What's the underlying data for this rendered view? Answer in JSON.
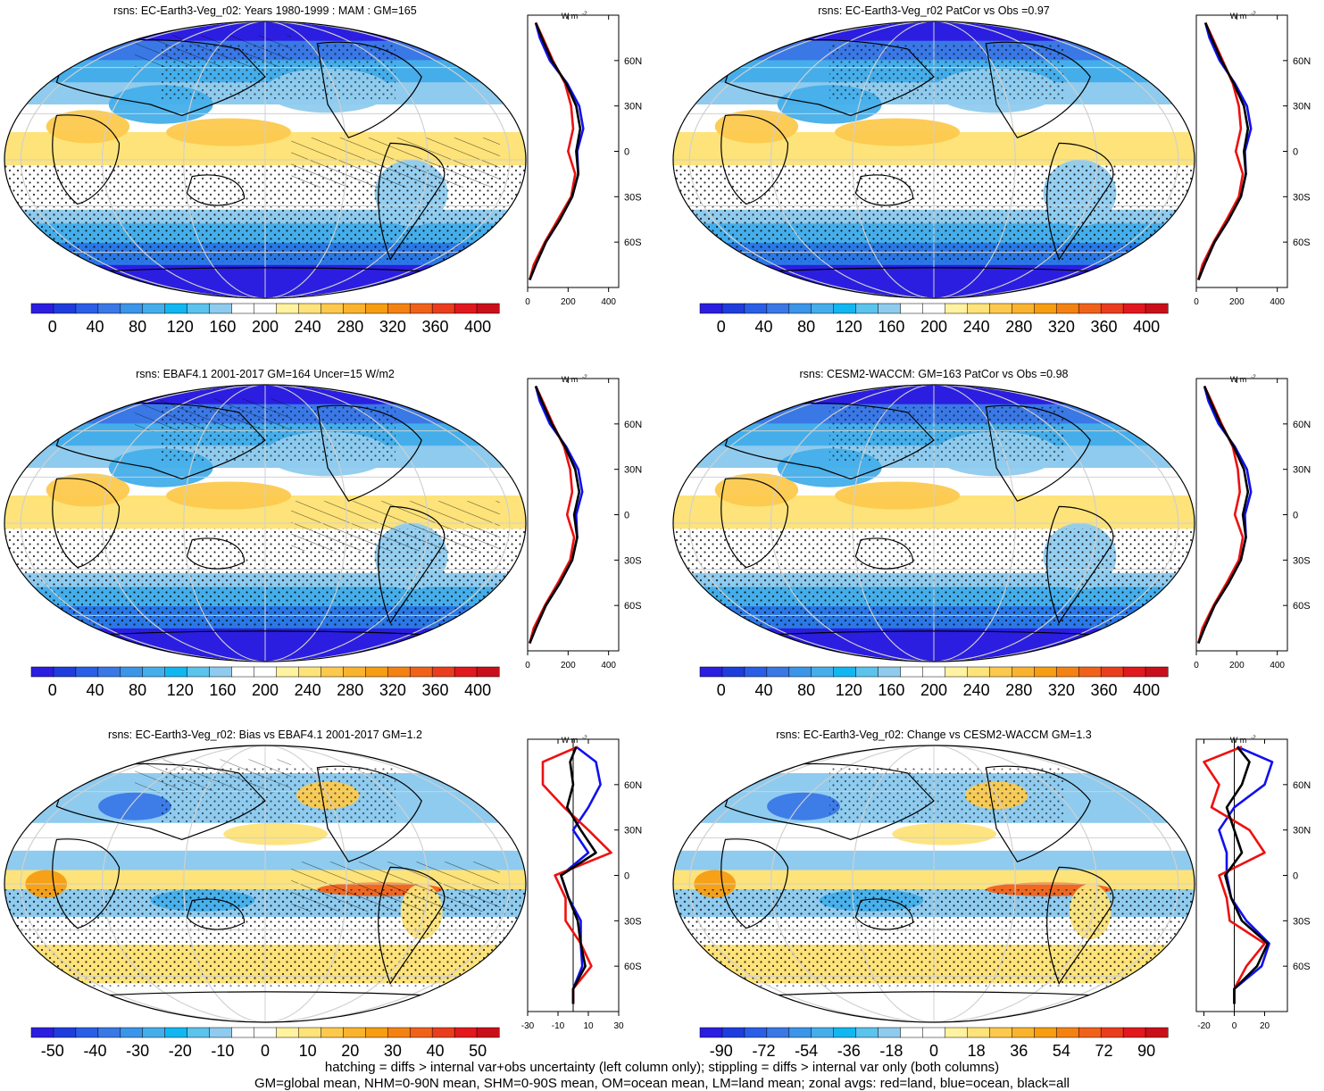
{
  "footer": {
    "line1": "hatching = diffs > internal var+obs uncertainty (left column only); stippling = diffs > internal var only (both columns)",
    "line2": "GM=global mean, NHM=0-90N mean, SHM=0-90S mean, OM=ocean mean, LM=land mean; zonal avgs: red=land, blue=ocean, black=all"
  },
  "profile_unit": "W m",
  "profile_unit_sup": "-2",
  "lat_ticks": [
    "60N",
    "30N",
    "0",
    "30S",
    "60S"
  ],
  "chart_data": [
    {
      "type": "heatmap",
      "title": "rsns: EC-Earth3-Veg_r02: Years 1980-1999 : MAM : GM=165",
      "colorbar": {
        "min": -20,
        "max": 420,
        "labels": [
          "0",
          "40",
          "80",
          "120",
          "160",
          "200",
          "240",
          "280",
          "320",
          "360",
          "400"
        ],
        "palette": "clim"
      },
      "profile": {
        "xlim": [
          0,
          450
        ],
        "ticks": [
          0,
          200,
          400
        ],
        "ref_line": null,
        "lat": [
          85,
          75,
          60,
          45,
          30,
          15,
          0,
          -15,
          -30,
          -45,
          -60,
          -75,
          -85
        ],
        "all": [
          40,
          70,
          120,
          190,
          240,
          260,
          240,
          250,
          220,
          160,
          90,
          40,
          10
        ],
        "land": [
          40,
          75,
          125,
          185,
          215,
          225,
          200,
          235,
          215,
          150,
          85,
          30,
          10
        ],
        "ocean": [
          40,
          60,
          110,
          195,
          255,
          275,
          245,
          250,
          220,
          160,
          90,
          40,
          10
        ]
      }
    },
    {
      "type": "heatmap",
      "title": "rsns: EC-Earth3-Veg_r02 PatCor vs Obs =0.97",
      "colorbar": {
        "min": -20,
        "max": 420,
        "labels": [
          "0",
          "40",
          "80",
          "120",
          "160",
          "200",
          "240",
          "280",
          "320",
          "360",
          "400"
        ],
        "palette": "clim"
      },
      "profile": {
        "xlim": [
          0,
          450
        ],
        "ticks": [
          0,
          200,
          400
        ],
        "ref_line": null,
        "lat": [
          85,
          75,
          60,
          45,
          30,
          15,
          0,
          -15,
          -30,
          -45,
          -60,
          -75,
          -85
        ],
        "all": [
          45,
          75,
          125,
          185,
          235,
          255,
          235,
          245,
          220,
          160,
          90,
          40,
          10
        ],
        "land": [
          45,
          80,
          130,
          180,
          210,
          220,
          195,
          230,
          210,
          150,
          85,
          30,
          10
        ],
        "ocean": [
          45,
          65,
          115,
          190,
          250,
          270,
          240,
          245,
          220,
          160,
          90,
          40,
          10
        ]
      }
    },
    {
      "type": "heatmap",
      "title": "rsns: EBAF4.1 2001-2017 GM=164 Uncer=15 W/m2",
      "colorbar": {
        "min": -20,
        "max": 420,
        "labels": [
          "0",
          "40",
          "80",
          "120",
          "160",
          "200",
          "240",
          "280",
          "320",
          "360",
          "400"
        ],
        "palette": "clim"
      },
      "profile": {
        "xlim": [
          0,
          450
        ],
        "ticks": [
          0,
          200,
          400
        ],
        "ref_line": null,
        "lat": [
          85,
          75,
          60,
          45,
          30,
          15,
          0,
          -15,
          -30,
          -45,
          -60,
          -75,
          -85
        ],
        "all": [
          40,
          70,
          120,
          185,
          235,
          255,
          230,
          245,
          220,
          160,
          90,
          40,
          10
        ],
        "land": [
          40,
          75,
          125,
          180,
          210,
          220,
          195,
          230,
          210,
          150,
          85,
          30,
          10
        ],
        "ocean": [
          40,
          60,
          110,
          190,
          250,
          270,
          240,
          245,
          220,
          160,
          90,
          40,
          10
        ]
      }
    },
    {
      "type": "heatmap",
      "title": "rsns: CESM2-WACCM: GM=163 PatCor vs Obs =0.98",
      "colorbar": {
        "min": -20,
        "max": 420,
        "labels": [
          "0",
          "40",
          "80",
          "120",
          "160",
          "200",
          "240",
          "280",
          "320",
          "360",
          "400"
        ],
        "palette": "clim"
      },
      "profile": {
        "xlim": [
          0,
          450
        ],
        "ticks": [
          0,
          200,
          400
        ],
        "ref_line": null,
        "lat": [
          85,
          75,
          60,
          45,
          30,
          15,
          0,
          -15,
          -30,
          -45,
          -60,
          -75,
          -85
        ],
        "all": [
          40,
          70,
          120,
          185,
          235,
          255,
          230,
          245,
          220,
          160,
          90,
          40,
          10
        ],
        "land": [
          40,
          75,
          125,
          180,
          205,
          215,
          190,
          230,
          210,
          150,
          85,
          30,
          10
        ],
        "ocean": [
          40,
          60,
          110,
          190,
          250,
          270,
          240,
          245,
          220,
          160,
          90,
          40,
          10
        ]
      }
    },
    {
      "type": "heatmap",
      "title": "rsns: EC-Earth3-Veg_r02: Bias vs EBAF4.1 2001-2017 GM=1.2",
      "colorbar": {
        "min": -55,
        "max": 55,
        "labels": [
          "-50",
          "-40",
          "-30",
          "-20",
          "-10",
          "0",
          "10",
          "20",
          "30",
          "40",
          "50"
        ],
        "palette": "diff"
      },
      "profile": {
        "xlim": [
          -30,
          30
        ],
        "ticks": [
          -30,
          -10,
          10,
          30
        ],
        "ref_line": 0,
        "lat": [
          85,
          75,
          60,
          45,
          30,
          15,
          0,
          -15,
          -30,
          -45,
          -60,
          -75,
          -85
        ],
        "all": [
          2,
          -2,
          0,
          -4,
          5,
          15,
          -8,
          -3,
          3,
          5,
          8,
          0,
          0
        ],
        "land": [
          3,
          -20,
          -20,
          -6,
          10,
          25,
          -12,
          -5,
          -5,
          5,
          12,
          0,
          0
        ],
        "ocean": [
          2,
          15,
          18,
          10,
          0,
          10,
          -8,
          -3,
          5,
          5,
          6,
          0,
          0
        ]
      }
    },
    {
      "type": "heatmap",
      "title": "rsns: EC-Earth3-Veg_r02: Change vs CESM2-WACCM GM=1.3",
      "colorbar": {
        "min": -99,
        "max": 99,
        "labels": [
          "-90",
          "-72",
          "-54",
          "-36",
          "-18",
          "0",
          "18",
          "36",
          "54",
          "72",
          "90"
        ],
        "palette": "diff"
      },
      "profile": {
        "xlim": [
          -25,
          35
        ],
        "ticks": [
          -20,
          0,
          20
        ],
        "ref_line": 0,
        "lat": [
          85,
          75,
          60,
          45,
          30,
          15,
          0,
          -15,
          -30,
          -45,
          -60,
          -75,
          -85
        ],
        "all": [
          2,
          10,
          5,
          -5,
          0,
          5,
          -6,
          -2,
          5,
          22,
          15,
          0,
          0
        ],
        "land": [
          5,
          -20,
          -10,
          -15,
          10,
          20,
          -10,
          -5,
          -3,
          20,
          8,
          0,
          0
        ],
        "ocean": [
          2,
          25,
          20,
          0,
          -10,
          -5,
          -5,
          -2,
          8,
          23,
          18,
          0,
          0
        ]
      }
    }
  ]
}
